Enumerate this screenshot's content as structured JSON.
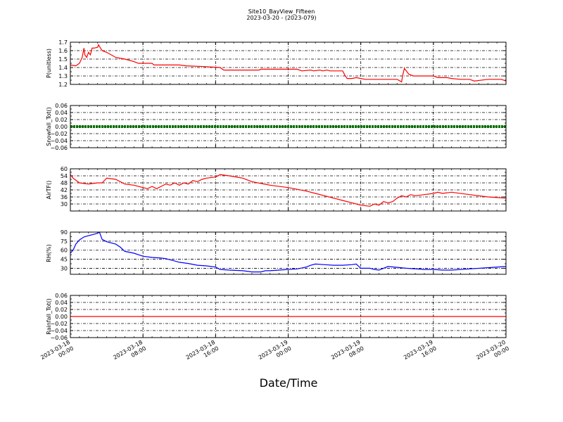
{
  "figure": {
    "title_line1": "Site10_BayView_Fifteen",
    "title_line2": "2023-03-20 - (2023-079)",
    "xlabel": "Date/Time",
    "x_ticks": [
      {
        "t": 0,
        "line1": "2023-03-18",
        "line2": "00:00"
      },
      {
        "t": 8,
        "line1": "2023-03-18",
        "line2": "08:00"
      },
      {
        "t": 16,
        "line1": "2023-03-18",
        "line2": "16:00"
      },
      {
        "t": 24,
        "line1": "2023-03-19",
        "line2": "00:00"
      },
      {
        "t": 32,
        "line1": "2023-03-19",
        "line2": "08:00"
      },
      {
        "t": 40,
        "line1": "2023-03-19",
        "line2": "16:00"
      },
      {
        "t": 48,
        "line1": "2023-03-20",
        "line2": "00:00"
      }
    ]
  },
  "chart_data": [
    {
      "type": "line",
      "ylabel": "P(unitless)",
      "ylim": [
        1.2,
        1.7
      ],
      "yticks": [
        "1.2",
        "1.3",
        "1.4",
        "1.5",
        "1.6",
        "1.7"
      ],
      "grid": true,
      "series": [
        {
          "color": "#ff0000",
          "x": [
            0,
            0.6,
            1.0,
            1.3,
            1.5,
            1.6,
            1.8,
            2.0,
            2.2,
            2.4,
            2.6,
            3.0,
            3.1,
            3.2,
            3.5,
            4.0,
            5.0,
            6.0,
            7.0,
            7.5,
            9.0,
            9.2,
            12.0,
            12.8,
            15.0,
            16.5,
            16.9,
            18.0,
            20.0,
            20.8,
            21.0,
            23.0,
            25.0,
            25.5,
            26.5,
            26.8,
            27.5,
            27.8,
            28.3,
            28.6,
            29.0,
            30.0,
            30.3,
            30.5,
            31.0,
            31.5,
            32.0,
            32.5,
            34.0,
            35.0,
            36.0,
            36.5,
            36.6,
            36.8,
            37.3,
            37.8,
            40.0,
            40.5,
            41.5,
            42.0,
            43.0,
            44.0,
            44.5,
            46.0,
            47.0,
            47.5,
            48.0
          ],
          "y": [
            1.43,
            1.42,
            1.45,
            1.52,
            1.63,
            1.55,
            1.52,
            1.58,
            1.55,
            1.63,
            1.63,
            1.64,
            1.67,
            1.65,
            1.6,
            1.58,
            1.52,
            1.5,
            1.47,
            1.45,
            1.45,
            1.43,
            1.43,
            1.42,
            1.41,
            1.4,
            1.37,
            1.37,
            1.37,
            1.37,
            1.38,
            1.38,
            1.38,
            1.36,
            1.37,
            1.36,
            1.37,
            1.36,
            1.37,
            1.36,
            1.36,
            1.36,
            1.3,
            1.27,
            1.27,
            1.28,
            1.27,
            1.26,
            1.26,
            1.26,
            1.26,
            1.23,
            1.3,
            1.39,
            1.32,
            1.3,
            1.3,
            1.28,
            1.28,
            1.27,
            1.26,
            1.26,
            1.24,
            1.26,
            1.26,
            1.26,
            1.24
          ]
        }
      ]
    },
    {
      "type": "line",
      "ylabel": "Snowfall_Tot()",
      "ylim": [
        -0.06,
        0.06
      ],
      "yticks": [
        "−0.06",
        "−0.04",
        "−0.02",
        "0.00",
        "0.02",
        "0.04",
        "0.06"
      ],
      "grid": true,
      "series": [
        {
          "color": "#007000",
          "x": [
            0,
            48
          ],
          "y": [
            0,
            0
          ]
        }
      ]
    },
    {
      "type": "line",
      "ylabel": "AirTF()",
      "ylim": [
        24,
        60
      ],
      "yticks": [
        "30",
        "36",
        "42",
        "48",
        "54",
        "60"
      ],
      "grid": true,
      "series": [
        {
          "color": "#ff0000",
          "x": [
            0,
            0.3,
            1.0,
            2.0,
            3.0,
            3.5,
            4.0,
            5.0,
            6.0,
            7.0,
            8.0,
            8.5,
            9.0,
            9.5,
            10.0,
            10.5,
            11.0,
            11.5,
            12.0,
            12.5,
            13.0,
            13.5,
            14.0,
            14.5,
            15.0,
            16.0,
            16.5,
            17.5,
            19.0,
            20.0,
            22.0,
            24.0,
            26.0,
            27.0,
            28.0,
            29.0,
            30.0,
            31.0,
            32.0,
            33.0,
            33.5,
            34.0,
            34.5,
            35.0,
            35.5,
            36.0,
            36.5,
            37.0,
            37.5,
            38.0,
            39.0,
            40.0,
            40.5,
            41.0,
            42.0,
            44.0,
            46.0,
            48.0
          ],
          "y": [
            55,
            52,
            48,
            47,
            48,
            48,
            52,
            51,
            47,
            46,
            44,
            43,
            45,
            43,
            45,
            47,
            46,
            48,
            46,
            48,
            47,
            50,
            49,
            51,
            52,
            53,
            55,
            54,
            52,
            49,
            46,
            44,
            41,
            39,
            37,
            35,
            33,
            31,
            29,
            28,
            30,
            29,
            32,
            31,
            32,
            35,
            37,
            36,
            38,
            37,
            38,
            39,
            40,
            39,
            40,
            38,
            36,
            35
          ]
        }
      ]
    },
    {
      "type": "line",
      "ylabel": "RH(%)",
      "ylim": [
        20,
        90
      ],
      "yticks": [
        "30",
        "45",
        "60",
        "75",
        "90"
      ],
      "grid": true,
      "series": [
        {
          "color": "#0000ff",
          "x": [
            0,
            0.3,
            0.6,
            1.0,
            1.5,
            2.0,
            2.5,
            3.0,
            3.2,
            3.5,
            4.0,
            5.0,
            5.5,
            6.0,
            7.0,
            8.0,
            9.0,
            10.0,
            10.5,
            11.0,
            11.5,
            12.0,
            13.0,
            14.0,
            15.0,
            16.0,
            16.5,
            17.5,
            19.0,
            20.0,
            21.0,
            21.5,
            22.0,
            23.0,
            25.0,
            26.0,
            26.5,
            27.0,
            28.0,
            29.0,
            30.0,
            31.0,
            31.5,
            32.0,
            33.0,
            33.5,
            34.0,
            35.0,
            37.0,
            39.0,
            40.0,
            41.0,
            42.0,
            44.0,
            46.0,
            48.0
          ],
          "y": [
            55,
            60,
            70,
            77,
            82,
            84,
            86,
            88,
            90,
            78,
            74,
            70,
            65,
            58,
            55,
            50,
            48,
            47,
            46,
            44,
            42,
            40,
            38,
            35,
            34,
            32,
            28,
            27,
            26,
            24,
            24,
            26,
            26,
            27,
            29,
            32,
            35,
            37,
            36,
            35,
            35,
            36,
            37,
            30,
            30,
            28,
            27,
            33,
            30,
            28,
            28,
            27,
            27,
            29,
            31,
            33
          ]
        }
      ]
    },
    {
      "type": "line",
      "ylabel": "Rainfall_Tot()",
      "ylim": [
        -0.06,
        0.06
      ],
      "yticks": [
        "−0.06",
        "−0.04",
        "−0.02",
        "0.00",
        "0.02",
        "0.04",
        "0.06"
      ],
      "grid": true,
      "series": [
        {
          "color": "#ff0000",
          "x": [
            0,
            48
          ],
          "y": [
            0,
            0
          ]
        }
      ]
    }
  ]
}
